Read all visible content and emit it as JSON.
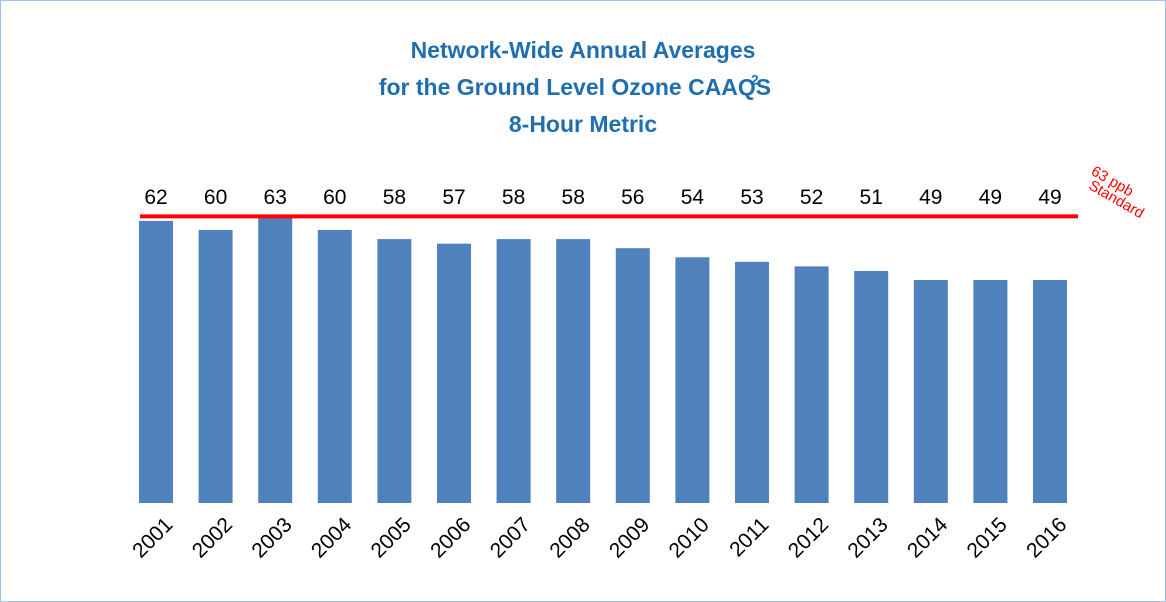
{
  "chart_data": {
    "type": "bar",
    "title": [
      "Network-Wide Annual Averages",
      "for the Ground Level Ozone CAAQS",
      "8-Hour Metric"
    ],
    "title_superscript": "2",
    "categories": [
      "2001",
      "2002",
      "2003",
      "2004",
      "2005",
      "2006",
      "2007",
      "2008",
      "2009",
      "2010",
      "2011",
      "2012",
      "2013",
      "2014",
      "2015",
      "2016"
    ],
    "values": [
      62,
      60,
      63,
      60,
      58,
      57,
      58,
      58,
      56,
      54,
      53,
      52,
      51,
      49,
      49,
      49
    ],
    "color": "#4f81bd",
    "reference": {
      "value": 63,
      "label": [
        "63 ppb",
        "Standard"
      ],
      "color": "#ff0000"
    }
  }
}
